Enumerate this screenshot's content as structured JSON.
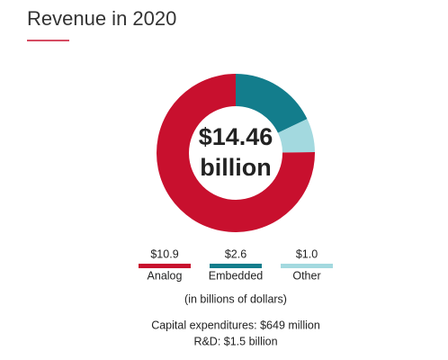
{
  "chart_data": {
    "type": "donut",
    "title": "Revenue in 2020",
    "center_value": "$14.46",
    "center_unit": "billion",
    "categories": [
      "Analog",
      "Embedded",
      "Other"
    ],
    "values": [
      10.9,
      2.6,
      1.0
    ],
    "value_labels": [
      "$10.9",
      "$2.6",
      "$1.0"
    ],
    "colors": [
      "#c8102e",
      "#137d8c",
      "#a3d9df"
    ],
    "unit_note": "(in billions of dollars)",
    "notes": [
      "Capital expenditures: $649 million",
      "R&D: $1.5 billion"
    ]
  }
}
